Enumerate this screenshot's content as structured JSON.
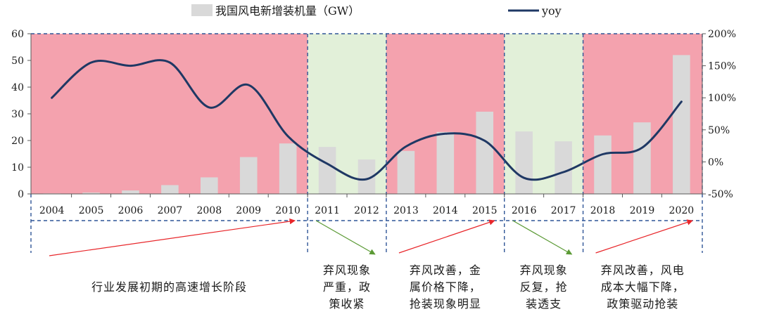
{
  "chart_data": {
    "type": "bar+line",
    "categories": [
      "2004",
      "2005",
      "2006",
      "2007",
      "2008",
      "2009",
      "2010",
      "2011",
      "2012",
      "2013",
      "2014",
      "2015",
      "2016",
      "2017",
      "2018",
      "2019",
      "2020"
    ],
    "series": [
      {
        "name": "我国风电新增装机量（GW）",
        "type": "bar",
        "axis": "left",
        "color": "#d9d9d9",
        "values": [
          0.2,
          0.5,
          1.3,
          3.3,
          6.2,
          13.8,
          18.9,
          17.6,
          12.9,
          16.1,
          23.2,
          30.8,
          23.4,
          19.7,
          21.9,
          26.8,
          52.0
        ]
      },
      {
        "name": "yoy",
        "type": "line",
        "axis": "right",
        "color": "#1f3864",
        "values": [
          1.0,
          1.55,
          1.5,
          1.55,
          0.85,
          1.2,
          0.4,
          -0.03,
          -0.27,
          0.24,
          0.44,
          0.33,
          -0.25,
          -0.16,
          0.12,
          0.22,
          0.94
        ]
      }
    ],
    "left_axis": {
      "min": 0,
      "max": 60,
      "ticks": [
        "0",
        "10",
        "20",
        "30",
        "40",
        "50",
        "60"
      ]
    },
    "right_axis": {
      "min": -0.5,
      "max": 2.0,
      "ticks": [
        "-50%",
        "0%",
        "50%",
        "100%",
        "150%",
        "200%"
      ]
    },
    "legend": {
      "position": "top-center",
      "bar_label": "我国风电新增装机量（GW）",
      "line_label": "yoy"
    },
    "phases": [
      {
        "from": "2004",
        "to": "2010",
        "color": "#f4a2ae",
        "trend": "up",
        "arrow_color": "#e8262a",
        "label_lines": [
          "行业发展初期的高速增长阶段"
        ]
      },
      {
        "from": "2011",
        "to": "2012",
        "color": "#e2f0d9",
        "trend": "down",
        "arrow_color": "#5b9a35",
        "label_lines": [
          "弃风现象",
          "严重，政",
          "策收紧"
        ]
      },
      {
        "from": "2013",
        "to": "2015",
        "color": "#f4a2ae",
        "trend": "up",
        "arrow_color": "#e8262a",
        "label_lines": [
          "弃风改善，金",
          "属价格下降，",
          "抢装现象明显"
        ]
      },
      {
        "from": "2016",
        "to": "2017",
        "color": "#e2f0d9",
        "trend": "down",
        "arrow_color": "#5b9a35",
        "label_lines": [
          "弃风现象",
          "反复，抢",
          "装透支"
        ]
      },
      {
        "from": "2018",
        "to": "2020",
        "color": "#f4a2ae",
        "trend": "up",
        "arrow_color": "#e8262a",
        "label_lines": [
          "弃风改善，风电",
          "成本大幅下降，",
          "政策驱动抢装"
        ]
      }
    ]
  }
}
